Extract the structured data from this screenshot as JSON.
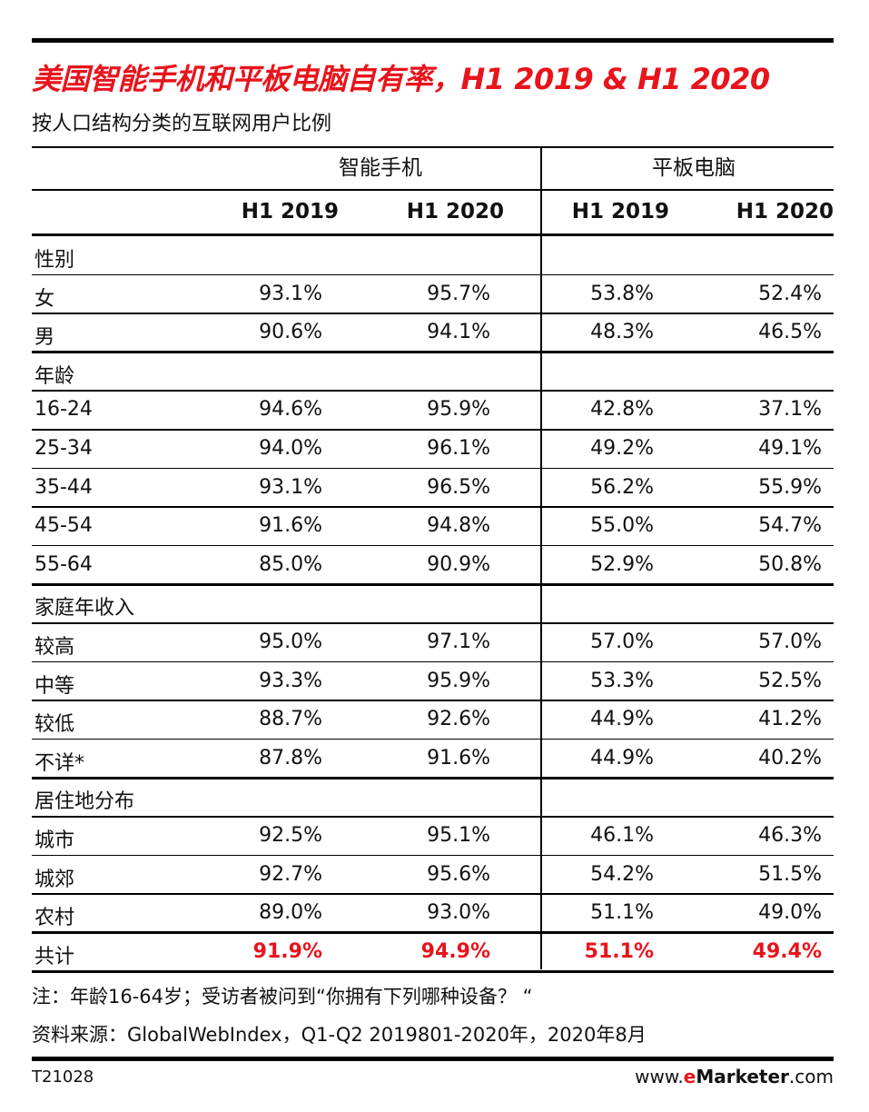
{
  "chart_data": {
    "type": "table",
    "title": "美国智能手机和平板电脑自有率，H1 2019 & H1 2020",
    "subtitle": "按人口结构分类的互联网用户比例",
    "column_groups": [
      "智能手机",
      "平板电脑"
    ],
    "columns": [
      "H1 2019",
      "H1 2020",
      "H1 2019",
      "H1 2020"
    ],
    "sections": [
      {
        "name": "性别",
        "rows": [
          {
            "label": "女",
            "values": [
              "93.1%",
              "95.7%",
              "53.8%",
              "52.4%"
            ]
          },
          {
            "label": "男",
            "values": [
              "90.6%",
              "94.1%",
              "48.3%",
              "46.5%"
            ]
          }
        ]
      },
      {
        "name": "年龄",
        "rows": [
          {
            "label": "16-24",
            "values": [
              "94.6%",
              "95.9%",
              "42.8%",
              "37.1%"
            ]
          },
          {
            "label": "25-34",
            "values": [
              "94.0%",
              "96.1%",
              "49.2%",
              "49.1%"
            ]
          },
          {
            "label": "35-44",
            "values": [
              "93.1%",
              "96.5%",
              "56.2%",
              "55.9%"
            ]
          },
          {
            "label": "45-54",
            "values": [
              "91.6%",
              "94.8%",
              "55.0%",
              "54.7%"
            ]
          },
          {
            "label": "55-64",
            "values": [
              "85.0%",
              "90.9%",
              "52.9%",
              "50.8%"
            ]
          }
        ]
      },
      {
        "name": "家庭年收入",
        "rows": [
          {
            "label": "较高",
            "values": [
              "95.0%",
              "97.1%",
              "57.0%",
              "57.0%"
            ]
          },
          {
            "label": "中等",
            "values": [
              "93.3%",
              "95.9%",
              "53.3%",
              "52.5%"
            ]
          },
          {
            "label": "较低",
            "values": [
              "88.7%",
              "92.6%",
              "44.9%",
              "41.2%"
            ]
          },
          {
            "label": "不详*",
            "values": [
              "87.8%",
              "91.6%",
              "44.9%",
              "40.2%"
            ]
          }
        ]
      },
      {
        "name": "居住地分布",
        "rows": [
          {
            "label": "城市",
            "values": [
              "92.5%",
              "95.1%",
              "46.1%",
              "46.3%"
            ]
          },
          {
            "label": "城郊",
            "values": [
              "92.7%",
              "95.6%",
              "54.2%",
              "51.5%"
            ]
          },
          {
            "label": "农村",
            "values": [
              "89.0%",
              "93.0%",
              "51.1%",
              "49.0%"
            ]
          }
        ]
      }
    ],
    "total": {
      "label": "共计",
      "values": [
        "91.9%",
        "94.9%",
        "51.1%",
        "49.4%"
      ]
    },
    "total_color": "#e8141c"
  },
  "notes": {
    "note": "注：年龄16-64岁；受访者被问到“你拥有下列哪种设备？ “",
    "source": "资料来源：GlobalWebIndex，Q1-Q2 2019801-2020年，2020年8月"
  },
  "footer": {
    "code": "T21028",
    "brand_prefix": "www.",
    "brand_e": "e",
    "brand_main": "Marketer",
    "brand_suffix": ".com"
  },
  "colors": {
    "title": "#e8141c"
  }
}
